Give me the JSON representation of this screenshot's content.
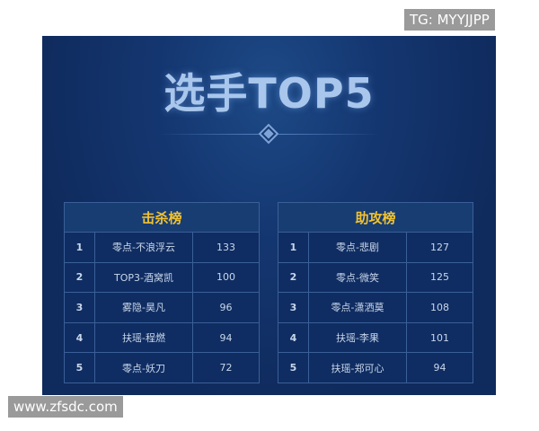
{
  "title": "选手TOP5",
  "kills": {
    "heading": "击杀榜",
    "rows": [
      {
        "rank": "1",
        "name": "零点-不浪浮云",
        "value": "133"
      },
      {
        "rank": "2",
        "name": "TOP3-酒窝凯",
        "value": "100"
      },
      {
        "rank": "3",
        "name": "雾隐-昊凡",
        "value": "96"
      },
      {
        "rank": "4",
        "name": "扶瑶-程燃",
        "value": "94"
      },
      {
        "rank": "5",
        "name": "零点-妖刀",
        "value": "72"
      }
    ]
  },
  "assists": {
    "heading": "助攻榜",
    "rows": [
      {
        "rank": "1",
        "name": "零点-悲剧",
        "value": "127"
      },
      {
        "rank": "2",
        "name": "零点-微笑",
        "value": "125"
      },
      {
        "rank": "3",
        "name": "零点-潇洒莫",
        "value": "108"
      },
      {
        "rank": "4",
        "name": "扶瑶-李果",
        "value": "101"
      },
      {
        "rank": "5",
        "name": "扶瑶-郑可心",
        "value": "94"
      }
    ]
  },
  "watermark_top": "TG: MYYJJPP",
  "watermark_bottom": "www.zfsdc.com"
}
